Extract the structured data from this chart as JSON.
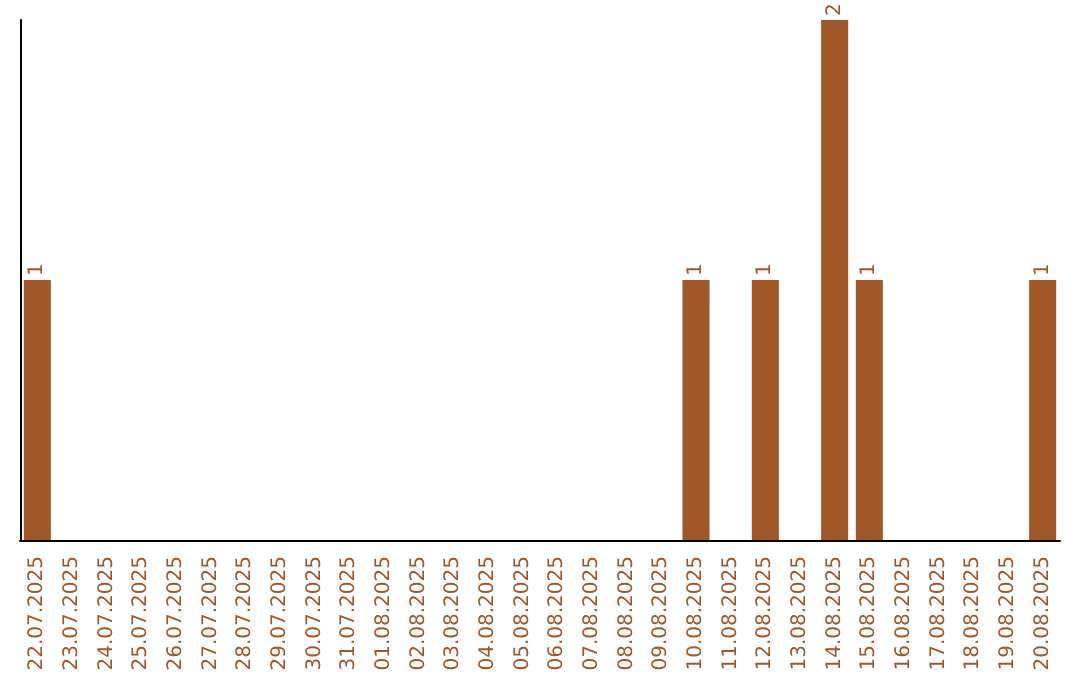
{
  "chart_data": {
    "type": "bar",
    "categories": [
      "22.07.2025",
      "23.07.2025",
      "24.07.2025",
      "25.07.2025",
      "26.07.2025",
      "27.07.2025",
      "28.07.2025",
      "29.07.2025",
      "30.07.2025",
      "31.07.2025",
      "01.08.2025",
      "02.08.2025",
      "03.08.2025",
      "04.08.2025",
      "05.08.2025",
      "06.08.2025",
      "07.08.2025",
      "08.08.2025",
      "09.08.2025",
      "10.08.2025",
      "11.08.2025",
      "12.08.2025",
      "13.08.2025",
      "14.08.2025",
      "15.08.2025",
      "16.08.2025",
      "17.08.2025",
      "18.08.2025",
      "19.08.2025",
      "20.08.2025"
    ],
    "values": [
      1,
      0,
      0,
      0,
      0,
      0,
      0,
      0,
      0,
      0,
      0,
      0,
      0,
      0,
      0,
      0,
      0,
      0,
      0,
      1,
      0,
      1,
      0,
      2,
      1,
      0,
      0,
      0,
      0,
      1
    ],
    "value_labels": [
      "1",
      null,
      null,
      null,
      null,
      null,
      null,
      null,
      null,
      null,
      null,
      null,
      null,
      null,
      null,
      null,
      null,
      null,
      null,
      "1",
      null,
      "1",
      null,
      "2",
      "1",
      null,
      null,
      null,
      null,
      "1"
    ],
    "color": "#a0572a"
  }
}
